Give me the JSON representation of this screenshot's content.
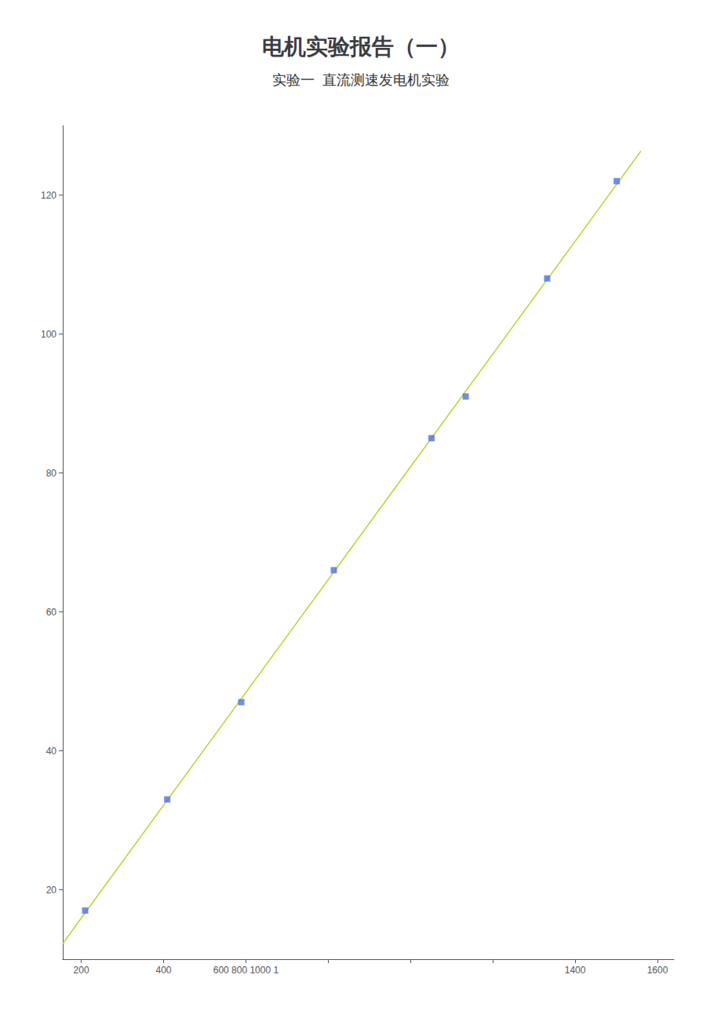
{
  "chart_data": {
    "type": "scatter",
    "title": "电机实验报告（一）",
    "subtitle": "实验一  直流测速发电机实验",
    "series": [
      {
        "type": "scatter",
        "marker": "square",
        "x": [
          209.4,
          408.9,
          588.7,
          813.6,
          1051,
          1134,
          1332,
          1501
        ],
        "values": [
          17,
          33,
          47,
          66,
          85,
          91,
          108,
          122
        ]
      },
      {
        "type": "line",
        "line_style": "solid",
        "x": [
          155,
          1560
        ],
        "values": [
          12.266,
          126.352
        ]
      }
    ],
    "xlim": [
      155,
      1640
    ],
    "ylim": [
      10,
      130
    ],
    "xticks": [
      200,
      400,
      {
        "value": 600,
        "label": "600 800 1000 1"
      },
      {
        "value": 800,
        "label": null
      },
      {
        "value": 1000,
        "label": null
      },
      {
        "value": 1200,
        "label": null
      },
      1400,
      1600
    ],
    "yticks": [
      20,
      40,
      60,
      80,
      100,
      120
    ],
    "grid": false
  }
}
